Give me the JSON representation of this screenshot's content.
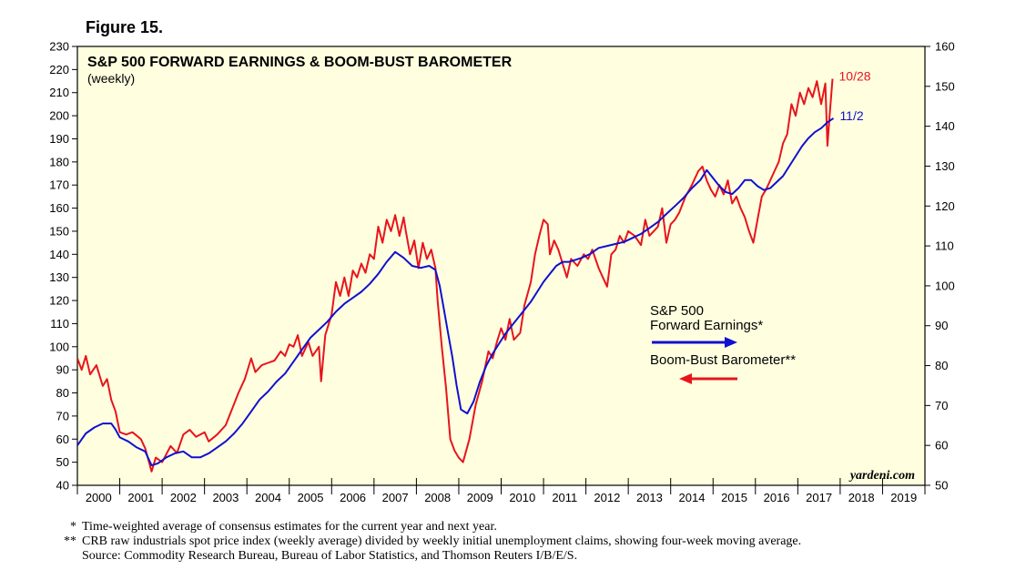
{
  "figure_label": "Figure 15.",
  "chart_data": {
    "type": "line",
    "title": "S&P 500 FORWARD EARNINGS & BOOM-BUST BAROMETER",
    "subtitle": "(weekly)",
    "watermark": "yardeni.com",
    "x_ticks": [
      "2000",
      "2001",
      "2002",
      "2003",
      "2004",
      "2005",
      "2006",
      "2007",
      "2008",
      "2009",
      "2010",
      "2011",
      "2012",
      "2013",
      "2014",
      "2015",
      "2016",
      "2017",
      "2018",
      "2019"
    ],
    "xlim": [
      2000.0,
      2020.0
    ],
    "left_axis": {
      "ylim": [
        40,
        230
      ],
      "ticks": [
        40,
        50,
        60,
        70,
        80,
        90,
        100,
        110,
        120,
        130,
        140,
        150,
        160,
        170,
        180,
        190,
        200,
        210,
        220,
        230
      ]
    },
    "right_axis": {
      "ylim": [
        50,
        160
      ],
      "ticks": [
        50,
        60,
        70,
        80,
        90,
        100,
        110,
        120,
        130,
        140,
        150,
        160
      ]
    },
    "background": "#FFFFE0",
    "series": [
      {
        "name": "Boom-Bust Barometer**",
        "axis": "left",
        "color": "#E8141C",
        "end_label": "10/28",
        "legend_arrow": "left",
        "points": [
          [
            2000.0,
            95
          ],
          [
            2000.1,
            90
          ],
          [
            2000.2,
            96
          ],
          [
            2000.3,
            88
          ],
          [
            2000.45,
            92
          ],
          [
            2000.6,
            83
          ],
          [
            2000.7,
            86
          ],
          [
            2000.8,
            77
          ],
          [
            2000.9,
            72
          ],
          [
            2001.0,
            63
          ],
          [
            2001.15,
            62
          ],
          [
            2001.3,
            63
          ],
          [
            2001.5,
            60
          ],
          [
            2001.6,
            56
          ],
          [
            2001.75,
            46
          ],
          [
            2001.85,
            52
          ],
          [
            2002.0,
            50
          ],
          [
            2002.2,
            57
          ],
          [
            2002.35,
            54
          ],
          [
            2002.5,
            62
          ],
          [
            2002.65,
            64
          ],
          [
            2002.8,
            61
          ],
          [
            2003.0,
            63
          ],
          [
            2003.1,
            59
          ],
          [
            2003.3,
            62
          ],
          [
            2003.5,
            66
          ],
          [
            2003.65,
            73
          ],
          [
            2003.8,
            80
          ],
          [
            2003.95,
            86
          ],
          [
            2004.1,
            95
          ],
          [
            2004.2,
            89
          ],
          [
            2004.35,
            92
          ],
          [
            2004.5,
            93
          ],
          [
            2004.65,
            94
          ],
          [
            2004.8,
            98
          ],
          [
            2004.9,
            96
          ],
          [
            2005.0,
            101
          ],
          [
            2005.1,
            100
          ],
          [
            2005.2,
            105
          ],
          [
            2005.3,
            96
          ],
          [
            2005.45,
            102
          ],
          [
            2005.55,
            96
          ],
          [
            2005.7,
            100
          ],
          [
            2005.75,
            85
          ],
          [
            2005.85,
            105
          ],
          [
            2006.0,
            114
          ],
          [
            2006.1,
            128
          ],
          [
            2006.2,
            122
          ],
          [
            2006.3,
            130
          ],
          [
            2006.4,
            122
          ],
          [
            2006.5,
            133
          ],
          [
            2006.6,
            130
          ],
          [
            2006.7,
            136
          ],
          [
            2006.8,
            132
          ],
          [
            2006.9,
            140
          ],
          [
            2007.0,
            138
          ],
          [
            2007.1,
            152
          ],
          [
            2007.2,
            145
          ],
          [
            2007.3,
            155
          ],
          [
            2007.4,
            150
          ],
          [
            2007.5,
            157
          ],
          [
            2007.6,
            148
          ],
          [
            2007.7,
            156
          ],
          [
            2007.75,
            150
          ],
          [
            2007.85,
            140
          ],
          [
            2007.95,
            146
          ],
          [
            2008.05,
            134
          ],
          [
            2008.15,
            145
          ],
          [
            2008.25,
            138
          ],
          [
            2008.35,
            142
          ],
          [
            2008.45,
            134
          ],
          [
            2008.5,
            120
          ],
          [
            2008.6,
            100
          ],
          [
            2008.7,
            82
          ],
          [
            2008.8,
            60
          ],
          [
            2008.9,
            55
          ],
          [
            2009.0,
            52
          ],
          [
            2009.1,
            50
          ],
          [
            2009.25,
            60
          ],
          [
            2009.4,
            75
          ],
          [
            2009.55,
            85
          ],
          [
            2009.7,
            98
          ],
          [
            2009.8,
            95
          ],
          [
            2009.9,
            102
          ],
          [
            2010.0,
            108
          ],
          [
            2010.1,
            103
          ],
          [
            2010.2,
            112
          ],
          [
            2010.3,
            103
          ],
          [
            2010.45,
            106
          ],
          [
            2010.55,
            118
          ],
          [
            2010.7,
            128
          ],
          [
            2010.8,
            140
          ],
          [
            2010.9,
            148
          ],
          [
            2011.0,
            155
          ],
          [
            2011.1,
            153
          ],
          [
            2011.15,
            140
          ],
          [
            2011.25,
            146
          ],
          [
            2011.35,
            142
          ],
          [
            2011.45,
            136
          ],
          [
            2011.55,
            130
          ],
          [
            2011.65,
            138
          ],
          [
            2011.8,
            135
          ],
          [
            2011.95,
            140
          ],
          [
            2012.05,
            138
          ],
          [
            2012.15,
            142
          ],
          [
            2012.3,
            134
          ],
          [
            2012.4,
            130
          ],
          [
            2012.5,
            126
          ],
          [
            2012.6,
            140
          ],
          [
            2012.7,
            142
          ],
          [
            2012.8,
            148
          ],
          [
            2012.9,
            145
          ],
          [
            2013.0,
            150
          ],
          [
            2013.15,
            148
          ],
          [
            2013.3,
            144
          ],
          [
            2013.4,
            155
          ],
          [
            2013.5,
            148
          ],
          [
            2013.6,
            150
          ],
          [
            2013.7,
            152
          ],
          [
            2013.8,
            160
          ],
          [
            2013.9,
            145
          ],
          [
            2014.0,
            153
          ],
          [
            2014.1,
            155
          ],
          [
            2014.2,
            158
          ],
          [
            2014.35,
            165
          ],
          [
            2014.5,
            170
          ],
          [
            2014.65,
            176
          ],
          [
            2014.75,
            178
          ],
          [
            2014.85,
            172
          ],
          [
            2014.95,
            168
          ],
          [
            2015.05,
            165
          ],
          [
            2015.15,
            170
          ],
          [
            2015.25,
            166
          ],
          [
            2015.35,
            172
          ],
          [
            2015.45,
            162
          ],
          [
            2015.55,
            165
          ],
          [
            2015.65,
            160
          ],
          [
            2015.75,
            156
          ],
          [
            2015.85,
            150
          ],
          [
            2015.95,
            145
          ],
          [
            2016.05,
            155
          ],
          [
            2016.15,
            165
          ],
          [
            2016.25,
            168
          ],
          [
            2016.35,
            172
          ],
          [
            2016.45,
            176
          ],
          [
            2016.55,
            180
          ],
          [
            2016.65,
            188
          ],
          [
            2016.75,
            192
          ],
          [
            2016.85,
            205
          ],
          [
            2016.95,
            200
          ],
          [
            2017.05,
            210
          ],
          [
            2017.15,
            205
          ],
          [
            2017.25,
            212
          ],
          [
            2017.35,
            208
          ],
          [
            2017.45,
            215
          ],
          [
            2017.55,
            205
          ],
          [
            2017.65,
            214
          ],
          [
            2017.7,
            187
          ],
          [
            2017.75,
            200
          ],
          [
            2017.82,
            216
          ]
        ]
      },
      {
        "name": "S&P 500 Forward Earnings*",
        "axis": "right",
        "color": "#1010D0",
        "end_label": "11/2",
        "legend_arrow": "right",
        "points": [
          [
            2000.0,
            60
          ],
          [
            2000.2,
            63
          ],
          [
            2000.4,
            64.5
          ],
          [
            2000.6,
            65.5
          ],
          [
            2000.8,
            65.5
          ],
          [
            2000.9,
            64
          ],
          [
            2001.0,
            62
          ],
          [
            2001.2,
            61
          ],
          [
            2001.4,
            59.5
          ],
          [
            2001.6,
            58.5
          ],
          [
            2001.75,
            55
          ],
          [
            2001.9,
            55.5
          ],
          [
            2002.1,
            57
          ],
          [
            2002.3,
            58
          ],
          [
            2002.5,
            58.5
          ],
          [
            2002.7,
            57
          ],
          [
            2002.9,
            57
          ],
          [
            2003.1,
            58
          ],
          [
            2003.3,
            59.5
          ],
          [
            2003.5,
            61
          ],
          [
            2003.7,
            63
          ],
          [
            2003.9,
            65.5
          ],
          [
            2004.1,
            68.5
          ],
          [
            2004.3,
            71.5
          ],
          [
            2004.5,
            73.5
          ],
          [
            2004.7,
            76
          ],
          [
            2004.9,
            78
          ],
          [
            2005.1,
            81
          ],
          [
            2005.3,
            84
          ],
          [
            2005.5,
            87
          ],
          [
            2005.7,
            89
          ],
          [
            2005.9,
            91
          ],
          [
            2006.1,
            93.5
          ],
          [
            2006.3,
            95.5
          ],
          [
            2006.5,
            97
          ],
          [
            2006.7,
            98.5
          ],
          [
            2006.9,
            100.5
          ],
          [
            2007.1,
            103
          ],
          [
            2007.3,
            106
          ],
          [
            2007.5,
            108.5
          ],
          [
            2007.7,
            107
          ],
          [
            2007.9,
            105
          ],
          [
            2008.1,
            104.5
          ],
          [
            2008.3,
            105
          ],
          [
            2008.45,
            104
          ],
          [
            2008.55,
            100
          ],
          [
            2008.65,
            94
          ],
          [
            2008.75,
            88
          ],
          [
            2008.85,
            82
          ],
          [
            2008.95,
            75
          ],
          [
            2009.05,
            69
          ],
          [
            2009.2,
            68
          ],
          [
            2009.35,
            71
          ],
          [
            2009.5,
            76
          ],
          [
            2009.65,
            80
          ],
          [
            2009.8,
            83
          ],
          [
            2009.95,
            85.5
          ],
          [
            2010.1,
            88
          ],
          [
            2010.25,
            90
          ],
          [
            2010.4,
            92
          ],
          [
            2010.55,
            94
          ],
          [
            2010.7,
            96
          ],
          [
            2010.85,
            98.5
          ],
          [
            2011.0,
            101
          ],
          [
            2011.15,
            103
          ],
          [
            2011.3,
            105
          ],
          [
            2011.45,
            106
          ],
          [
            2011.6,
            106
          ],
          [
            2011.75,
            106.5
          ],
          [
            2011.9,
            107
          ],
          [
            2012.1,
            108
          ],
          [
            2012.3,
            109.5
          ],
          [
            2012.5,
            110
          ],
          [
            2012.7,
            110.5
          ],
          [
            2012.9,
            111
          ],
          [
            2013.1,
            112
          ],
          [
            2013.3,
            113
          ],
          [
            2013.5,
            114.5
          ],
          [
            2013.7,
            116
          ],
          [
            2013.9,
            118
          ],
          [
            2014.1,
            120
          ],
          [
            2014.3,
            122
          ],
          [
            2014.5,
            124.5
          ],
          [
            2014.7,
            126.5
          ],
          [
            2014.85,
            129
          ],
          [
            2015.0,
            127
          ],
          [
            2015.15,
            125
          ],
          [
            2015.3,
            123.5
          ],
          [
            2015.45,
            123
          ],
          [
            2015.6,
            124.5
          ],
          [
            2015.75,
            126.5
          ],
          [
            2015.9,
            126.5
          ],
          [
            2016.05,
            125
          ],
          [
            2016.2,
            124
          ],
          [
            2016.35,
            124.5
          ],
          [
            2016.5,
            126
          ],
          [
            2016.65,
            127.5
          ],
          [
            2016.8,
            130
          ],
          [
            2016.95,
            132.5
          ],
          [
            2017.1,
            135
          ],
          [
            2017.25,
            137
          ],
          [
            2017.4,
            138.5
          ],
          [
            2017.55,
            139.5
          ],
          [
            2017.7,
            141
          ],
          [
            2017.84,
            142
          ]
        ]
      }
    ]
  },
  "footnotes": [
    {
      "marker": "*",
      "text": "Time-weighted average of consensus estimates for the current year and next year."
    },
    {
      "marker": "**",
      "text": "CRB raw industrials spot price index (weekly average) divided by weekly initial unemployment claims, showing four-week moving average."
    },
    {
      "marker": "",
      "text": "Source: Commodity Research Bureau, Bureau of Labor Statistics, and Thomson Reuters I/B/E/S."
    }
  ],
  "legend": {
    "forward_earnings_line1": "S&P 500",
    "forward_earnings_line2": "Forward Earnings*",
    "boom_bust": "Boom-Bust Barometer**"
  }
}
